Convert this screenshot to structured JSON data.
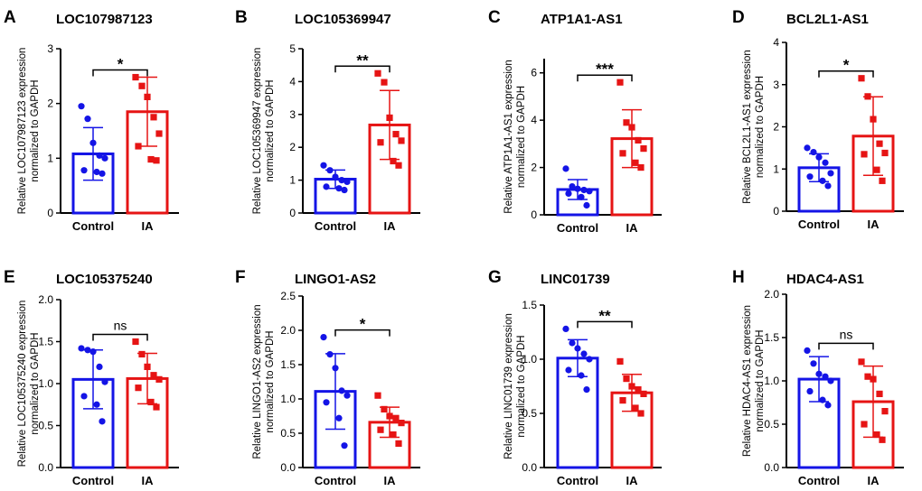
{
  "figure": {
    "colors": {
      "control": "#1414e6",
      "ia": "#e61414",
      "axis": "#000000"
    }
  },
  "chart_data": [
    {
      "panel": "A",
      "type": "bar",
      "title": "LOC107987123",
      "ylabel_lines": [
        "Relative LOC107987123 expression",
        "normalized to GAPDH"
      ],
      "ylim": [
        0,
        3
      ],
      "yticks": [
        0,
        1,
        2,
        3
      ],
      "tick_labels": [
        "0",
        "1",
        "2",
        "3"
      ],
      "categories": [
        "Control",
        "IA"
      ],
      "series": [
        {
          "name": "Control",
          "mean": 1.08,
          "sd": 0.48,
          "points": [
            1.95,
            1.72,
            1.28,
            1.05,
            1.0,
            0.78,
            0.75,
            0.72
          ],
          "marker": "circle"
        },
        {
          "name": "IA",
          "mean": 1.85,
          "sd": 0.63,
          "points": [
            2.48,
            2.32,
            2.12,
            1.75,
            1.45,
            1.22,
            0.98,
            0.96
          ],
          "marker": "square"
        }
      ],
      "significance": "*"
    },
    {
      "panel": "B",
      "type": "bar",
      "title": "LOC105369947",
      "ylabel_lines": [
        "Relative LOC105369947 expression",
        "normalized to GAPDH"
      ],
      "ylim": [
        0,
        5
      ],
      "yticks": [
        0,
        1,
        2,
        3,
        4,
        5
      ],
      "tick_labels": [
        "0",
        "1",
        "2",
        "3",
        "4",
        "5"
      ],
      "categories": [
        "Control",
        "IA"
      ],
      "series": [
        {
          "name": "Control",
          "mean": 1.03,
          "sd": 0.28,
          "points": [
            1.45,
            1.3,
            1.1,
            1.0,
            0.95,
            0.8,
            0.75,
            0.7
          ],
          "marker": "circle"
        },
        {
          "name": "IA",
          "mean": 2.68,
          "sd": 1.05,
          "points": [
            4.25,
            3.98,
            2.9,
            2.4,
            2.2,
            2.15,
            1.58,
            1.45
          ],
          "marker": "square"
        }
      ],
      "significance": "**"
    },
    {
      "panel": "C",
      "type": "bar",
      "title": "ATP1A1-AS1",
      "ylabel_lines": [
        "Relative ATP1A1-AS1 expression",
        "normalized to GAPDH"
      ],
      "ylim": [
        0,
        6.6
      ],
      "yticks": [
        0,
        2,
        4,
        6
      ],
      "tick_labels": [
        "0",
        "2",
        "4",
        "6"
      ],
      "categories": [
        "Control",
        "IA"
      ],
      "series": [
        {
          "name": "Control",
          "mean": 1.07,
          "sd": 0.42,
          "points": [
            1.95,
            1.2,
            1.1,
            1.05,
            1.0,
            0.9,
            0.75,
            0.4
          ],
          "marker": "circle"
        },
        {
          "name": "IA",
          "mean": 3.22,
          "sd": 1.22,
          "points": [
            5.6,
            3.9,
            3.7,
            3.15,
            2.8,
            2.6,
            2.2,
            2.0
          ],
          "marker": "square"
        }
      ],
      "significance": "***"
    },
    {
      "panel": "D",
      "type": "bar",
      "title": "BCL2L1-AS1",
      "ylabel_lines": [
        "Relative BCL2L1-AS1 expression",
        "normalized to GAPDH"
      ],
      "ylim": [
        0,
        4
      ],
      "yticks": [
        0,
        1,
        2,
        3,
        4
      ],
      "tick_labels": [
        "0",
        "1",
        "2",
        "3",
        "4"
      ],
      "categories": [
        "Control",
        "IA"
      ],
      "series": [
        {
          "name": "Control",
          "mean": 1.03,
          "sd": 0.33,
          "points": [
            1.5,
            1.4,
            1.28,
            1.15,
            0.9,
            0.82,
            0.72,
            0.6
          ],
          "marker": "circle"
        },
        {
          "name": "IA",
          "mean": 1.78,
          "sd": 0.93,
          "points": [
            3.15,
            2.72,
            2.18,
            1.6,
            1.38,
            1.35,
            0.98,
            0.72
          ],
          "marker": "square"
        }
      ],
      "significance": "*"
    },
    {
      "panel": "E",
      "type": "bar",
      "title": "LOC105375240",
      "ylabel_lines": [
        "Relative LOC105375240 expression",
        "normalized to GAPDH"
      ],
      "ylim": [
        0,
        2.0
      ],
      "yticks": [
        0,
        0.5,
        1.0,
        1.5,
        2.0
      ],
      "tick_labels": [
        "0.0",
        "0.5",
        "1.0",
        "1.5",
        "2.0"
      ],
      "categories": [
        "Control",
        "IA"
      ],
      "series": [
        {
          "name": "Control",
          "mean": 1.05,
          "sd": 0.35,
          "points": [
            1.42,
            1.4,
            1.38,
            1.2,
            1.02,
            0.85,
            0.75,
            0.55
          ],
          "marker": "circle"
        },
        {
          "name": "IA",
          "mean": 1.06,
          "sd": 0.3,
          "points": [
            1.5,
            1.35,
            1.2,
            1.1,
            1.05,
            0.95,
            0.78,
            0.72
          ],
          "marker": "square"
        }
      ],
      "significance": "ns"
    },
    {
      "panel": "F",
      "type": "bar",
      "title": "LINGO1-AS2",
      "ylabel_lines": [
        "Relative LINGO1-AS2 expression",
        "normalized to GAPDH"
      ],
      "ylim": [
        0,
        2.5
      ],
      "yticks": [
        0,
        0.5,
        1.0,
        1.5,
        2.0,
        2.5
      ],
      "tick_labels": [
        "0.0",
        "0.5",
        "1.0",
        "1.5",
        "2.0",
        "2.5"
      ],
      "categories": [
        "Control",
        "IA"
      ],
      "series": [
        {
          "name": "Control",
          "mean": 1.11,
          "sd": 0.55,
          "points": [
            1.9,
            1.65,
            1.45,
            1.12,
            1.05,
            0.95,
            0.72,
            0.32
          ],
          "marker": "circle"
        },
        {
          "name": "IA",
          "mean": 0.66,
          "sd": 0.22,
          "points": [
            1.05,
            0.85,
            0.75,
            0.72,
            0.65,
            0.55,
            0.48,
            0.35
          ],
          "marker": "square"
        }
      ],
      "significance": "*"
    },
    {
      "panel": "G",
      "type": "bar",
      "title": "LINC01739",
      "ylabel_lines": [
        "Relative LINC01739 expression",
        "normalized to GAPDH"
      ],
      "ylim": [
        0,
        1.5
      ],
      "yticks": [
        0,
        0.5,
        1.0,
        1.5
      ],
      "tick_labels": [
        "0.0",
        "0.5",
        "1.0",
        "1.5"
      ],
      "categories": [
        "Control",
        "IA"
      ],
      "series": [
        {
          "name": "Control",
          "mean": 1.01,
          "sd": 0.17,
          "points": [
            1.28,
            1.15,
            1.1,
            1.05,
            1.0,
            0.9,
            0.85,
            0.72
          ],
          "marker": "circle"
        },
        {
          "name": "IA",
          "mean": 0.69,
          "sd": 0.17,
          "points": [
            0.98,
            0.82,
            0.75,
            0.72,
            0.68,
            0.62,
            0.55,
            0.5
          ],
          "marker": "square"
        }
      ],
      "significance": "**"
    },
    {
      "panel": "H",
      "type": "bar",
      "title": "HDAC4-AS1",
      "ylabel_lines": [
        "Relative HDAC4-AS1 expression",
        "normalized to GAPDH"
      ],
      "ylim": [
        0,
        2.0
      ],
      "yticks": [
        0,
        0.5,
        1.0,
        1.5,
        2.0
      ],
      "tick_labels": [
        "0.0",
        "0.5",
        "1.0",
        "1.5",
        "2.0"
      ],
      "categories": [
        "Control",
        "IA"
      ],
      "series": [
        {
          "name": "Control",
          "mean": 1.02,
          "sd": 0.26,
          "points": [
            1.35,
            1.2,
            1.08,
            1.05,
            1.0,
            0.88,
            0.78,
            0.72
          ],
          "marker": "circle"
        },
        {
          "name": "IA",
          "mean": 0.76,
          "sd": 0.41,
          "points": [
            1.22,
            1.05,
            1.02,
            0.85,
            0.65,
            0.5,
            0.38,
            0.32
          ],
          "marker": "square"
        }
      ],
      "significance": "ns"
    }
  ]
}
